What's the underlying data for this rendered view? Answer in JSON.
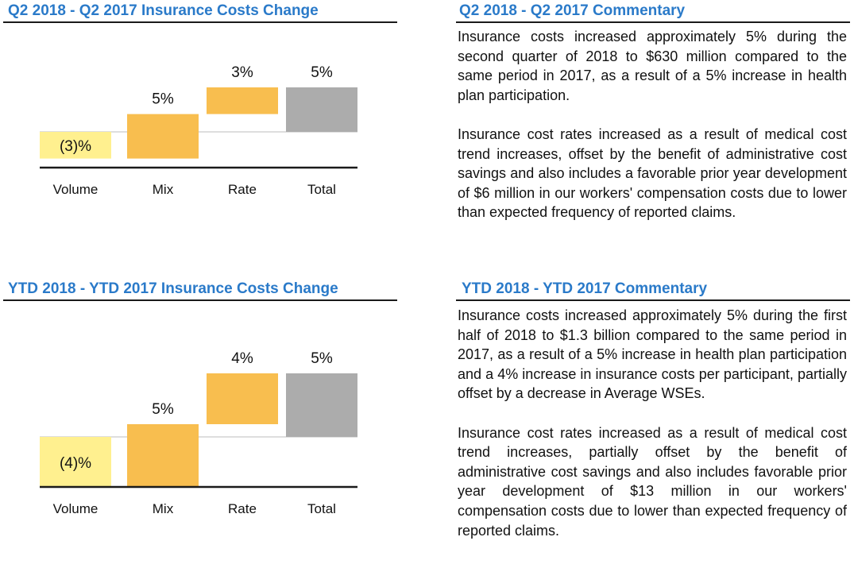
{
  "colors": {
    "title_blue": "#2a7ac9",
    "volume": "#fff08f",
    "mix": "#f8be4f",
    "rate": "#f8be4f",
    "total": "#acacac"
  },
  "q2_commentary": {
    "title": "Q2 2018 - Q2 2017 Commentary",
    "paragraphs": [
      "Insurance costs increased approximately 5% during the second quarter of 2018 to $630 million compared to the same period in 2017, as a result of a 5% increase in health plan participation.",
      "Insurance cost rates increased as a result of medical cost trend increases, offset by the benefit of administrative cost savings and also includes a favorable prior year development of $6 million in our workers' compensation costs due to lower than expected frequency of reported claims."
    ]
  },
  "ytd_commentary": {
    "title": "YTD 2018 - YTD 2017 Commentary",
    "paragraphs": [
      "Insurance costs increased approximately 5% during the first half of 2018 to $1.3 billion compared to the same period in 2017, as a result of a 5% increase in health plan participation and a 4% increase in insurance costs per participant, partially offset by a decrease in Average WSEs.",
      "Insurance cost rates increased as a result of medical cost trend increases, partially offset by the benefit of administrative cost savings and also includes favorable prior year development of $13 million in our workers' compensation costs due to lower than expected frequency of reported claims."
    ]
  },
  "chart_data": [
    {
      "type": "bar",
      "subtype": "waterfall",
      "title": "Q2 2018 - Q2 2017 Insurance Costs Change",
      "categories": [
        "Volume",
        "Mix",
        "Rate",
        "Total"
      ],
      "values": [
        -3,
        5,
        3,
        5
      ],
      "labels": [
        "(3)%",
        "5%",
        "3%",
        "5%"
      ],
      "kinds": [
        "step",
        "step",
        "step",
        "total"
      ],
      "colors": [
        "#fff08f",
        "#f8be4f",
        "#f8be4f",
        "#acacac"
      ],
      "xlabel": "",
      "ylabel": ""
    },
    {
      "type": "bar",
      "subtype": "waterfall",
      "title": "YTD 2018 - YTD 2017 Insurance Costs Change",
      "categories": [
        "Volume",
        "Mix",
        "Rate",
        "Total"
      ],
      "values": [
        -4,
        5,
        4,
        5
      ],
      "labels": [
        "(4)%",
        "5%",
        "4%",
        "5%"
      ],
      "kinds": [
        "step",
        "step",
        "step",
        "total"
      ],
      "colors": [
        "#fff08f",
        "#f8be4f",
        "#f8be4f",
        "#acacac"
      ],
      "xlabel": "",
      "ylabel": ""
    }
  ]
}
